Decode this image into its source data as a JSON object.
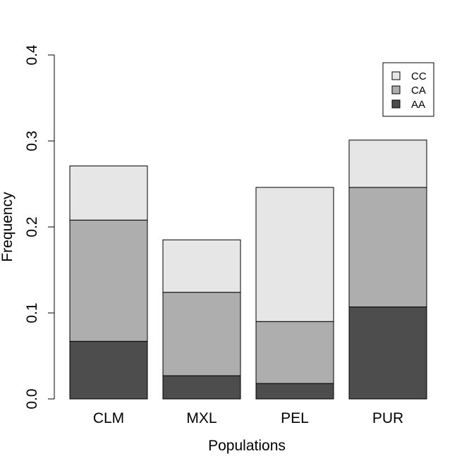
{
  "chart_data": {
    "type": "bar",
    "stacked": true,
    "categories": [
      "CLM",
      "MXL",
      "PEL",
      "PUR"
    ],
    "series": [
      {
        "name": "AA",
        "values": [
          0.067,
          0.027,
          0.018,
          0.107
        ],
        "color": "#4d4d4d"
      },
      {
        "name": "CA",
        "values": [
          0.141,
          0.097,
          0.072,
          0.139
        ],
        "color": "#aeaeae"
      },
      {
        "name": "CC",
        "values": [
          0.063,
          0.061,
          0.156,
          0.055
        ],
        "color": "#e6e6e6"
      }
    ],
    "title": "",
    "xlabel": "Populations",
    "ylabel": "Frequency",
    "ylim": [
      0,
      0.4
    ],
    "yticks": [
      "0.0",
      "0.1",
      "0.2",
      "0.3",
      "0.4"
    ],
    "legend": {
      "position": "top-right",
      "order": [
        "CC",
        "CA",
        "AA"
      ]
    },
    "grid": false
  }
}
